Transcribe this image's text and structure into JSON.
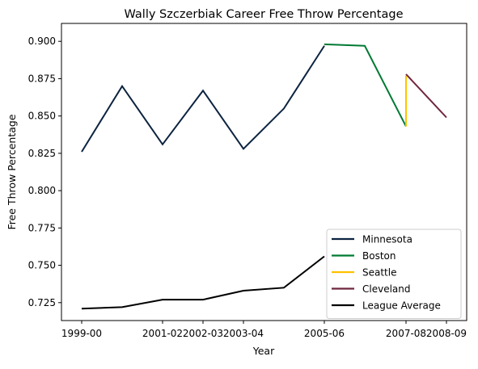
{
  "chart_data": {
    "type": "line",
    "title": "Wally Szczerbiak Career Free Throw Percentage",
    "xlabel": "Year",
    "ylabel": "Free Throw Percentage",
    "x_ticks": [
      "1999-00",
      "2001-02",
      "2002-03",
      "2003-04",
      "2005-06",
      "2007-08",
      "2008-09"
    ],
    "y_ticks": [
      "0.725",
      "0.750",
      "0.775",
      "0.800",
      "0.825",
      "0.850",
      "0.875",
      "0.900"
    ],
    "ylim": [
      0.713,
      0.912
    ],
    "grid": false,
    "legend_position": "lower-right",
    "series": [
      {
        "name": "Minnesota",
        "color": "#0c2340",
        "points": [
          [
            "1999-00",
            0.826
          ],
          [
            "2000-01",
            0.87
          ],
          [
            "2001-02",
            0.831
          ],
          [
            "2002-03",
            0.867
          ],
          [
            "2003-04",
            0.828
          ],
          [
            "2004-05",
            0.855
          ],
          [
            "2005-06",
            0.897
          ]
        ]
      },
      {
        "name": "Boston",
        "color": "#007a33",
        "points": [
          [
            "2005-06",
            0.898
          ],
          [
            "2006-07",
            0.897
          ],
          [
            "2007-08",
            0.843
          ]
        ]
      },
      {
        "name": "Seattle",
        "color": "#ffc200",
        "points": [
          [
            "2007-08",
            0.843
          ],
          [
            "2007-08",
            0.877
          ]
        ]
      },
      {
        "name": "Cleveland",
        "color": "#6f263d",
        "points": [
          [
            "2007-08",
            0.878
          ],
          [
            "2008-09",
            0.849
          ]
        ]
      },
      {
        "name": "League Average",
        "color": "#000000",
        "points": [
          [
            "1999-00",
            0.721
          ],
          [
            "2000-01",
            0.722
          ],
          [
            "2001-02",
            0.727
          ],
          [
            "2002-03",
            0.727
          ],
          [
            "2003-04",
            0.733
          ],
          [
            "2004-05",
            0.735
          ],
          [
            "2005-06",
            0.756
          ]
        ]
      }
    ]
  }
}
